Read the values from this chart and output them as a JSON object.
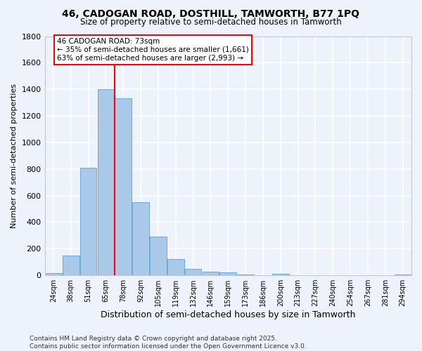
{
  "title_line1": "46, CADOGAN ROAD, DOSTHILL, TAMWORTH, B77 1PQ",
  "title_line2": "Size of property relative to semi-detached houses in Tamworth",
  "xlabel": "Distribution of semi-detached houses by size in Tamworth",
  "ylabel": "Number of semi-detached properties",
  "categories": [
    "24sqm",
    "38sqm",
    "51sqm",
    "65sqm",
    "78sqm",
    "92sqm",
    "105sqm",
    "119sqm",
    "132sqm",
    "146sqm",
    "159sqm",
    "173sqm",
    "186sqm",
    "200sqm",
    "213sqm",
    "227sqm",
    "240sqm",
    "254sqm",
    "267sqm",
    "281sqm",
    "294sqm"
  ],
  "values": [
    15,
    150,
    810,
    1400,
    1330,
    550,
    290,
    120,
    50,
    25,
    20,
    5,
    0,
    10,
    0,
    0,
    0,
    0,
    0,
    0,
    5
  ],
  "bar_color": "#aac8e8",
  "bar_edge_color": "#6aaad4",
  "vline_x_index": 4,
  "annotation_text_line1": "46 CADOGAN ROAD: 73sqm",
  "annotation_text_line2": "← 35% of semi-detached houses are smaller (1,661)",
  "annotation_text_line3": "63% of semi-detached houses are larger (2,993) →",
  "annotation_box_facecolor": "white",
  "annotation_box_edgecolor": "red",
  "vline_color": "red",
  "ylim": [
    0,
    1800
  ],
  "yticks": [
    0,
    200,
    400,
    600,
    800,
    1000,
    1200,
    1400,
    1600,
    1800
  ],
  "footer_line1": "Contains HM Land Registry data © Crown copyright and database right 2025.",
  "footer_line2": "Contains public sector information licensed under the Open Government Licence v3.0.",
  "bg_color": "#eef2fb",
  "grid_color": "white"
}
